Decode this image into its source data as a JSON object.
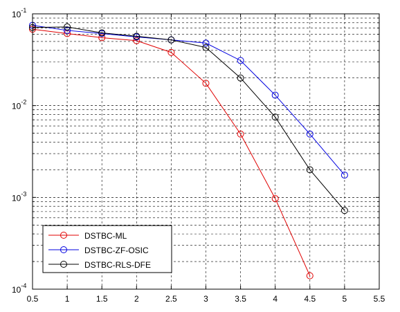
{
  "chart_data": {
    "type": "line",
    "xlim": [
      0.5,
      5.5
    ],
    "ylim": [
      0.0001,
      0.1
    ],
    "yscale": "log",
    "grid": true,
    "grid_style": "dashed",
    "legend_position": "bottom-left",
    "x_ticks": [
      "0.5",
      "1",
      "1.5",
      "2",
      "2.5",
      "3",
      "3.5",
      "4",
      "4.5",
      "5",
      "5.5"
    ],
    "y_ticks": [
      {
        "value": 0.0001,
        "base": "10",
        "exp": "-4"
      },
      {
        "value": 0.001,
        "base": "10",
        "exp": "-3"
      },
      {
        "value": 0.01,
        "base": "10",
        "exp": "-2"
      },
      {
        "value": 0.1,
        "base": "10",
        "exp": "-1"
      }
    ],
    "marker": "circle",
    "series": [
      {
        "name": "DSTBC-ML",
        "color": "#e00000",
        "x": [
          0.5,
          1,
          1.5,
          2,
          2.5,
          3,
          3.5,
          4,
          4.5
        ],
        "y": [
          0.068,
          0.061,
          0.055,
          0.051,
          0.038,
          0.0175,
          0.0049,
          0.00097,
          0.00014
        ]
      },
      {
        "name": "DSTBC-ZF-OSIC",
        "color": "#0000e0",
        "x": [
          0.5,
          1,
          1.5,
          2,
          2.5,
          3,
          3.5,
          4,
          4.5,
          5
        ],
        "y": [
          0.075,
          0.066,
          0.061,
          0.056,
          0.052,
          0.048,
          0.031,
          0.013,
          0.0049,
          0.00175
        ]
      },
      {
        "name": "DSTBC-RLS-DFE",
        "color": "#000000",
        "x": [
          0.5,
          1,
          1.5,
          2,
          2.5,
          3,
          3.5,
          4,
          4.5,
          5
        ],
        "y": [
          0.071,
          0.072,
          0.062,
          0.057,
          0.052,
          0.043,
          0.02,
          0.0075,
          0.002,
          0.00072
        ]
      }
    ]
  }
}
